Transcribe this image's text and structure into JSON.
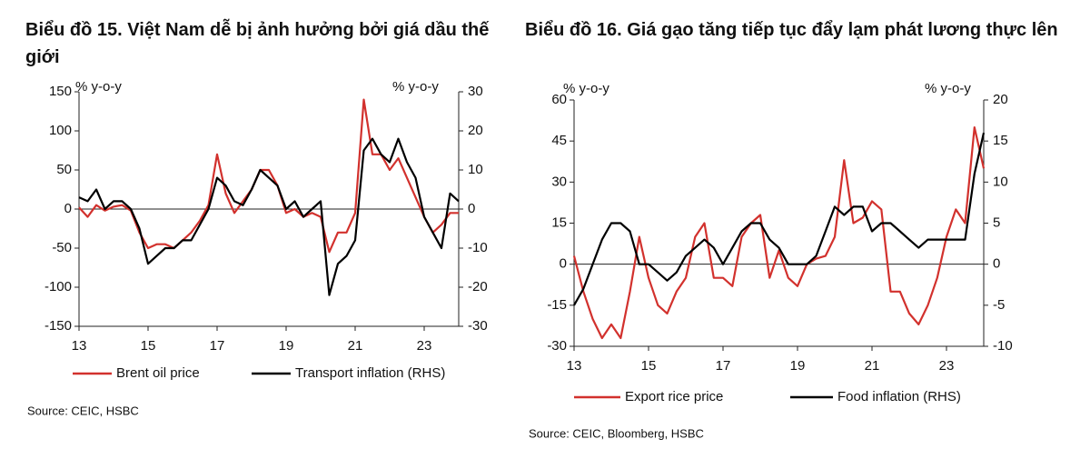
{
  "chart_data": [
    {
      "type": "line",
      "title": "Biểu đồ 15. Việt Nam dễ bị ảnh hưởng bởi giá dầu thế giới",
      "ylabel": "% y-o-y",
      "y2label": "% y-o-y",
      "source": "Source: CEIC, HSBC",
      "x": [
        13,
        13.25,
        13.5,
        13.75,
        14,
        14.25,
        14.5,
        14.75,
        15,
        15.25,
        15.5,
        15.75,
        16,
        16.25,
        16.5,
        16.75,
        17,
        17.25,
        17.5,
        17.75,
        18,
        18.25,
        18.5,
        18.75,
        19,
        19.25,
        19.5,
        19.75,
        20,
        20.25,
        20.5,
        20.75,
        21,
        21.25,
        21.5,
        21.75,
        22,
        22.25,
        22.5,
        22.75,
        23,
        23.25,
        23.5,
        23.75,
        24
      ],
      "xlim": [
        13,
        24
      ],
      "xticks": [
        13,
        15,
        17,
        19,
        21,
        23
      ],
      "ylim": [
        -150,
        150
      ],
      "yticks": [
        -150,
        -100,
        -50,
        0,
        50,
        100,
        150
      ],
      "y2lim": [
        -30,
        30
      ],
      "y2ticks": [
        -30,
        -20,
        -10,
        0,
        10,
        20,
        30
      ],
      "series": [
        {
          "name": "Brent oil price",
          "color": "#d2312d",
          "values": [
            2,
            -10,
            5,
            -2,
            3,
            5,
            -2,
            -30,
            -50,
            -45,
            -45,
            -50,
            -40,
            -30,
            -15,
            5,
            70,
            20,
            -5,
            10,
            25,
            50,
            50,
            30,
            -5,
            0,
            -10,
            -5,
            -10,
            -55,
            -30,
            -30,
            -5,
            140,
            70,
            70,
            50,
            65,
            40,
            15,
            -10,
            -30,
            -20,
            -5,
            -5
          ]
        },
        {
          "name": "Transport inflation (RHS)",
          "color": "#000000",
          "axis": "y2",
          "values": [
            3,
            2,
            5,
            0,
            2,
            2,
            0,
            -5,
            -14,
            -12,
            -10,
            -10,
            -8,
            -8,
            -4,
            0,
            8,
            6,
            2,
            1,
            5,
            10,
            8,
            6,
            0,
            2,
            -2,
            0,
            2,
            -22,
            -14,
            -12,
            -8,
            15,
            18,
            14,
            12,
            18,
            12,
            8,
            -2,
            -6,
            -10,
            4,
            2
          ]
        }
      ]
    },
    {
      "type": "line",
      "title": "Biểu đồ 16. Giá gạo tăng tiếp tục đẩy lạm phát lương thực lên",
      "ylabel": "% y-o-y",
      "y2label": "% y-o-y",
      "source": "Source: CEIC, Bloomberg, HSBC",
      "x": [
        13,
        13.25,
        13.5,
        13.75,
        14,
        14.25,
        14.5,
        14.75,
        15,
        15.25,
        15.5,
        15.75,
        16,
        16.25,
        16.5,
        16.75,
        17,
        17.25,
        17.5,
        17.75,
        18,
        18.25,
        18.5,
        18.75,
        19,
        19.25,
        19.5,
        19.75,
        20,
        20.25,
        20.5,
        20.75,
        21,
        21.25,
        21.5,
        21.75,
        22,
        22.25,
        22.5,
        22.75,
        23,
        23.25,
        23.5,
        23.75,
        24
      ],
      "xlim": [
        13,
        24
      ],
      "xticks": [
        13,
        15,
        17,
        19,
        21,
        23
      ],
      "ylim": [
        -30,
        60
      ],
      "yticks": [
        -30,
        -15,
        0,
        15,
        30,
        45,
        60
      ],
      "y2lim": [
        -10,
        20
      ],
      "y2ticks": [
        -10,
        -5,
        0,
        5,
        10,
        15,
        20
      ],
      "series": [
        {
          "name": "Export rice price",
          "color": "#d2312d",
          "values": [
            3,
            -10,
            -20,
            -27,
            -22,
            -27,
            -10,
            10,
            -5,
            -15,
            -18,
            -10,
            -5,
            10,
            15,
            -5,
            -5,
            -8,
            10,
            15,
            18,
            -5,
            5,
            -5,
            -8,
            0,
            2,
            3,
            10,
            38,
            15,
            17,
            23,
            20,
            -10,
            -10,
            -18,
            -22,
            -15,
            -5,
            10,
            20,
            15,
            50,
            35
          ]
        },
        {
          "name": "Food inflation (RHS)",
          "color": "#000000",
          "axis": "y2",
          "values": [
            -5,
            -3,
            0,
            3,
            5,
            5,
            4,
            0,
            0,
            -1,
            -2,
            -1,
            1,
            2,
            3,
            2,
            0,
            2,
            4,
            5,
            5,
            3,
            2,
            0,
            0,
            0,
            1,
            4,
            7,
            6,
            7,
            7,
            4,
            5,
            5,
            4,
            3,
            2,
            3,
            3,
            3,
            3,
            3,
            11,
            16
          ]
        }
      ]
    }
  ]
}
